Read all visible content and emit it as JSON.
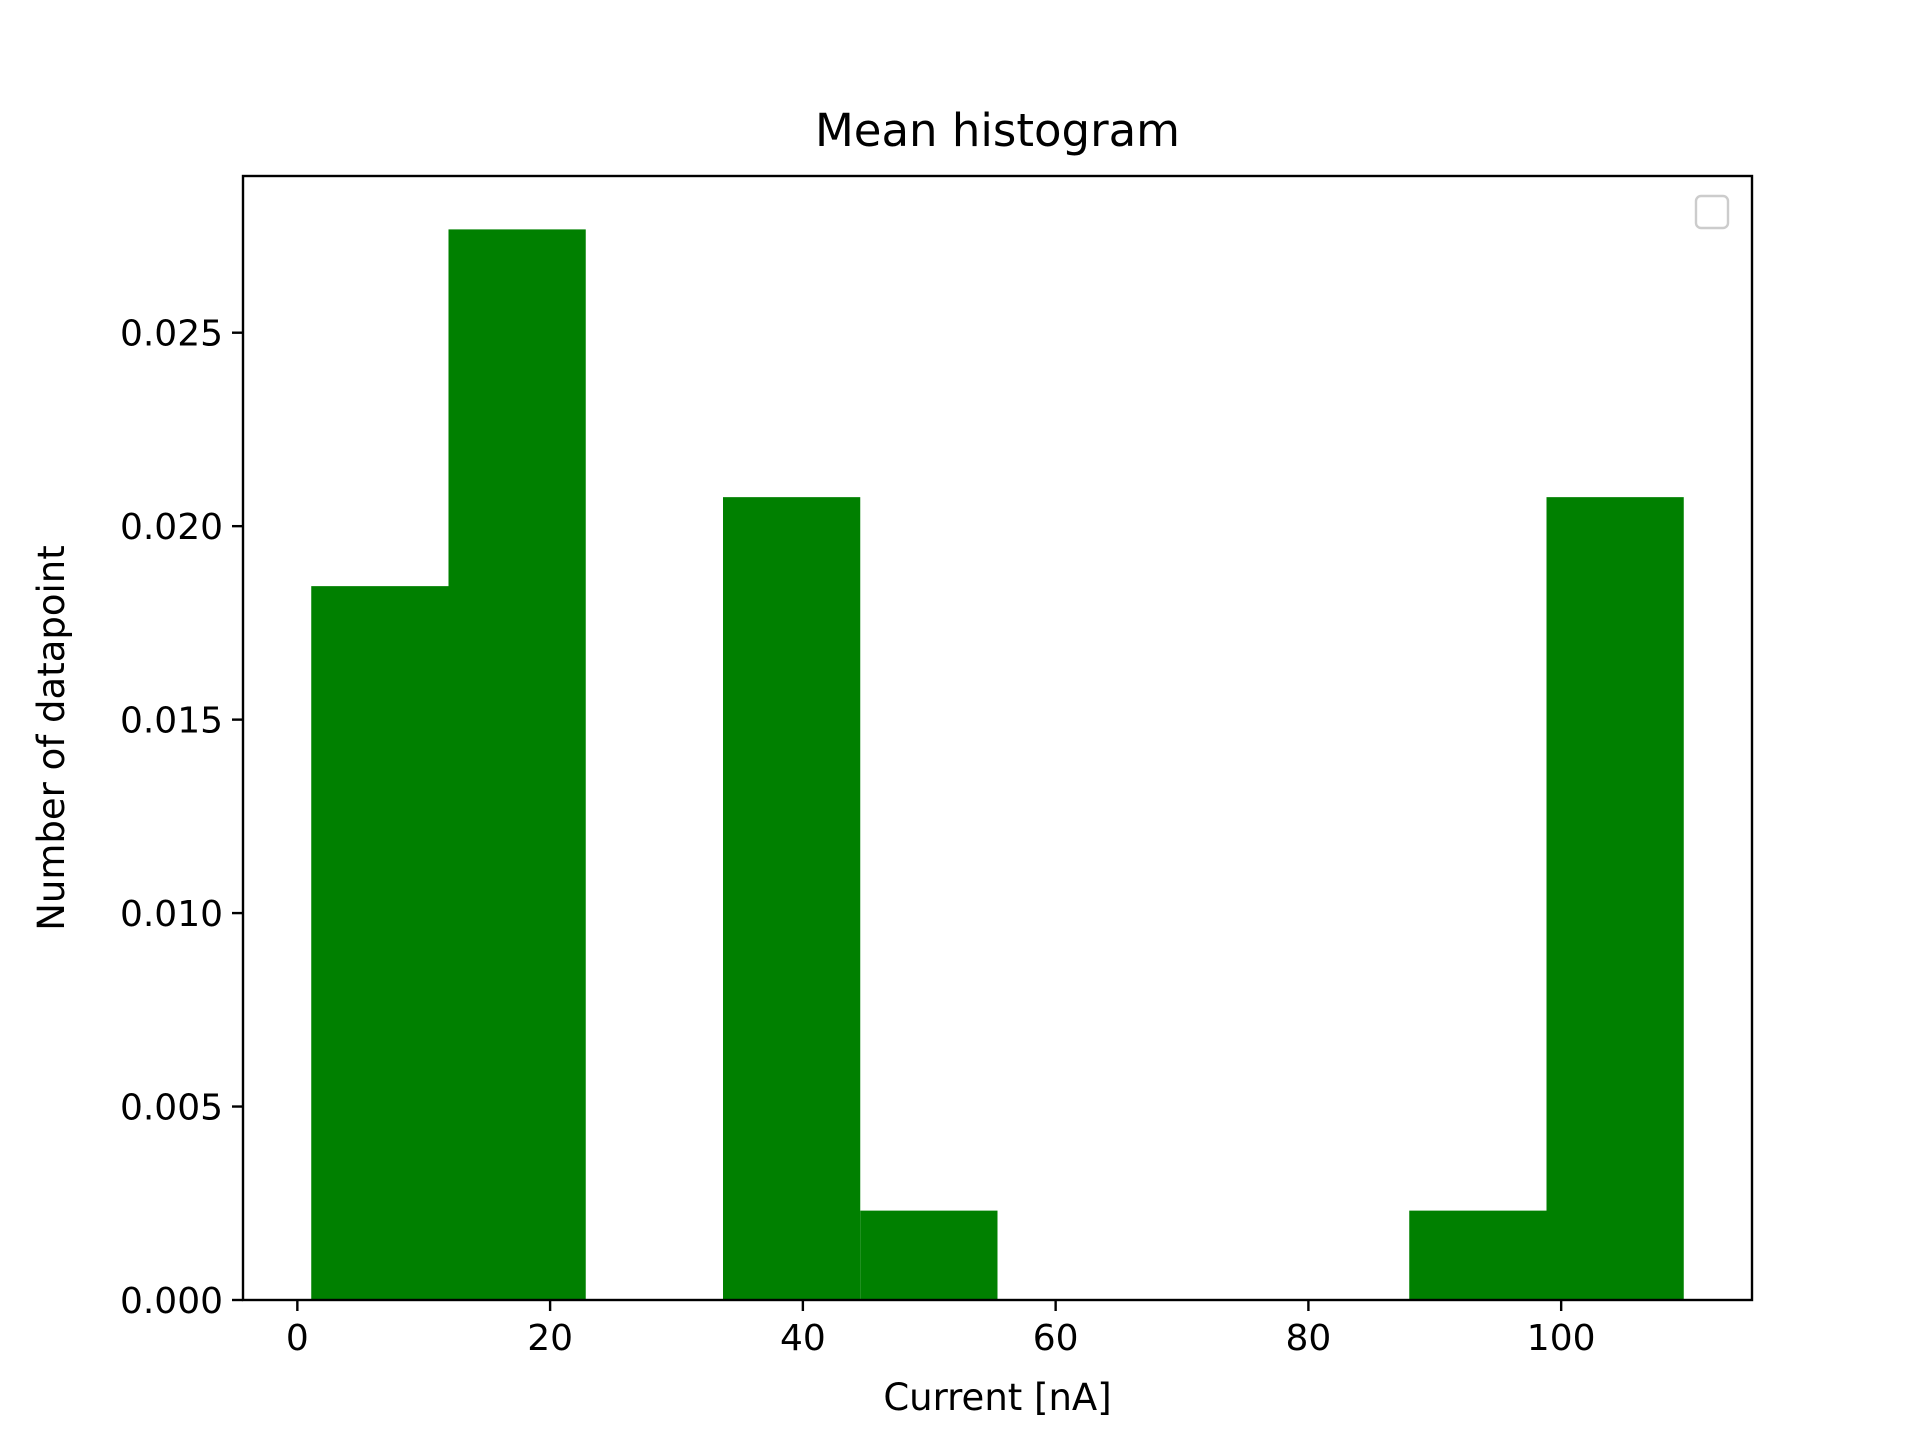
{
  "chart_data": {
    "type": "bar",
    "title": "Mean histogram",
    "xlabel": "Current [nA]",
    "ylabel": "Number of datapoint",
    "bin_edges": [
      1.1,
      11.96,
      22.82,
      33.68,
      44.54,
      55.4,
      66.26,
      77.12,
      87.98,
      98.84,
      109.7
    ],
    "values": [
      0.01845,
      0.02767,
      0,
      0.02075,
      0.00231,
      0,
      0,
      0,
      0.00231,
      0.02075
    ],
    "xlim": [
      -4.3,
      115.1
    ],
    "ylim": [
      0,
      0.02905
    ],
    "x_ticks": [
      0,
      20,
      40,
      60,
      80,
      100
    ],
    "x_tick_labels": [
      "0",
      "20",
      "40",
      "60",
      "80",
      "100"
    ],
    "y_ticks": [
      0,
      0.005,
      0.01,
      0.015,
      0.02,
      0.025
    ],
    "y_tick_labels": [
      "0.000",
      "0.005",
      "0.010",
      "0.015",
      "0.020",
      "0.025"
    ],
    "bar_color": "#008000",
    "grid": false,
    "legend": {
      "placement": "top-right",
      "entries": []
    }
  }
}
